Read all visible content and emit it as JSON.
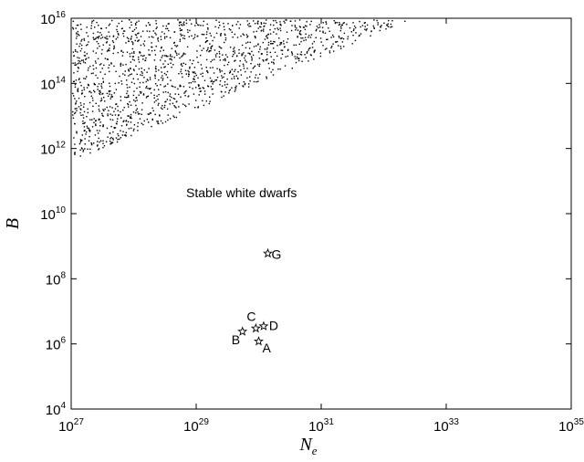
{
  "chart_data": {
    "type": "scatter",
    "title": "",
    "xlabel": "N",
    "xlabel_subscript": "e",
    "ylabel": "B",
    "xscale": "log",
    "yscale": "log",
    "x_exp_range": [
      27,
      35
    ],
    "y_exp_range": [
      4,
      16
    ],
    "x_ticks": [
      "10^27",
      "10^29",
      "10^31",
      "10^33",
      "10^35"
    ],
    "y_ticks": [
      "10^4",
      "10^6",
      "10^8",
      "10^10",
      "10^12",
      "10^14",
      "10^16"
    ],
    "tick_base": "10",
    "x_tick_exponents": [
      "27",
      "29",
      "31",
      "33",
      "35"
    ],
    "y_tick_exponents": [
      "4",
      "6",
      "8",
      "10",
      "12",
      "14",
      "16"
    ],
    "grid": false,
    "annotation": "Stable white dwarfs",
    "unstable_region": {
      "description": "dense dot-filled region above the line from (N_e=1e27, B=4e11) to (N_e=3e32, B=1e16)",
      "boundary_start": [
        1e+27,
        400000000000.0
      ],
      "boundary_end": [
        3e+32,
        1e+16
      ],
      "marker": "dot"
    },
    "series": [
      {
        "marker": "star",
        "points": [
          {
            "label": "A",
            "x": 1e+30,
            "y": 1200000.0
          },
          {
            "label": "B",
            "x": 5.5e+29,
            "y": 2400000.0
          },
          {
            "label": "C",
            "x": 9e+29,
            "y": 3000000.0
          },
          {
            "label": "D",
            "x": 1.2e+30,
            "y": 3500000.0
          },
          {
            "label": "G",
            "x": 1.4e+30,
            "y": 600000000.0
          }
        ]
      }
    ]
  }
}
